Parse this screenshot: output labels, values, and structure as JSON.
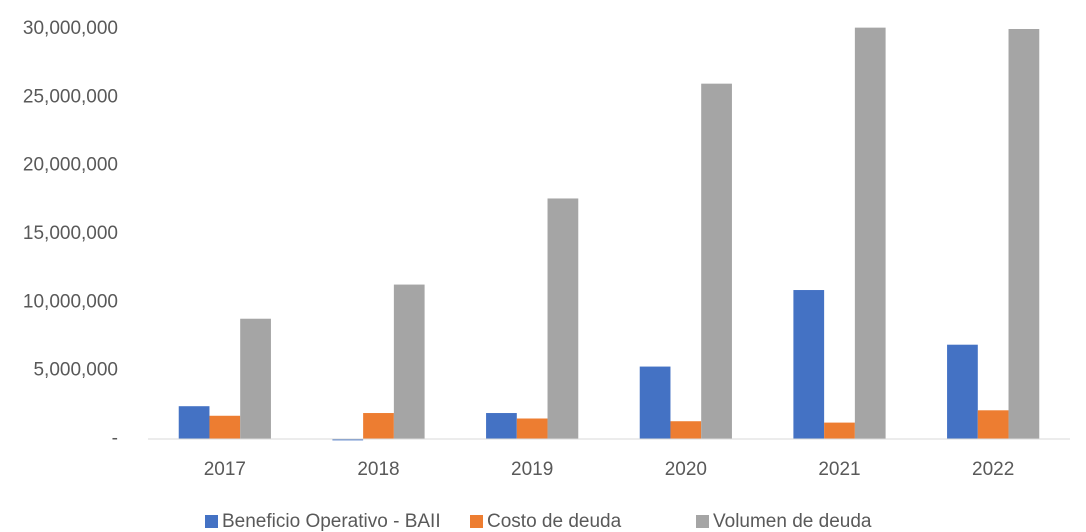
{
  "chart_data": {
    "type": "bar",
    "categories": [
      "2017",
      "2018",
      "2019",
      "2020",
      "2021",
      "2022"
    ],
    "series": [
      {
        "name": "Beneficio Operativo - BAII",
        "color": "#4472c4",
        "values": [
          2400000,
          -100000,
          1900000,
          5300000,
          10900000,
          6900000
        ]
      },
      {
        "name": "Costo de deuda",
        "color": "#ed7d31",
        "values": [
          1700000,
          1900000,
          1500000,
          1300000,
          1200000,
          2100000
        ]
      },
      {
        "name": "Volumen de deuda",
        "color": "#a5a5a5",
        "values": [
          8800000,
          11300000,
          17600000,
          26000000,
          30100000,
          30000000
        ]
      }
    ],
    "ylim": [
      0,
      30000000
    ],
    "yticks": [
      {
        "value": 0,
        "label": "-"
      },
      {
        "value": 5000000,
        "label": "5,000,000"
      },
      {
        "value": 10000000,
        "label": "10,000,000"
      },
      {
        "value": 15000000,
        "label": "15,000,000"
      },
      {
        "value": 20000000,
        "label": "20,000,000"
      },
      {
        "value": 25000000,
        "label": "25,000,000"
      },
      {
        "value": 30000000,
        "label": "30,000,000"
      }
    ],
    "grid": false,
    "legend": "bottom"
  }
}
